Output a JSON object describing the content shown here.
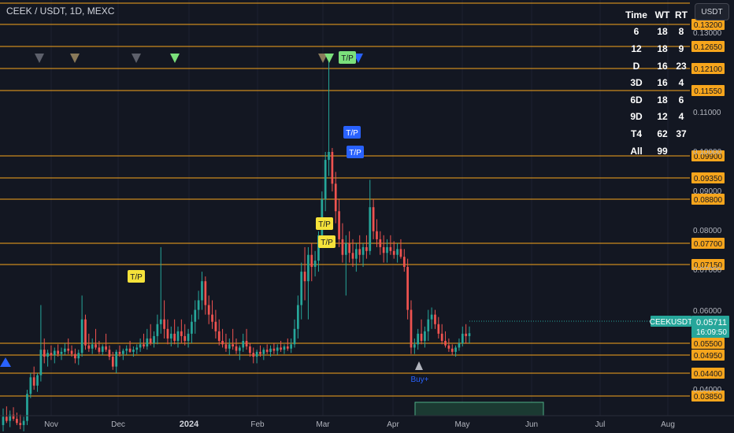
{
  "header": {
    "symbol": "CEEK / USDT, 1D, MEXC",
    "currency_button": "USDT"
  },
  "stats_table": {
    "columns": [
      "Time",
      "WT",
      "RT"
    ],
    "rows": [
      [
        "6",
        "18",
        "8"
      ],
      [
        "12",
        "18",
        "9"
      ],
      [
        "D",
        "16",
        "23"
      ],
      [
        "3D",
        "16",
        "4"
      ],
      [
        "6D",
        "18",
        "6"
      ],
      [
        "9D",
        "12",
        "4"
      ],
      [
        "T4",
        "62",
        "37"
      ],
      [
        "All",
        "99",
        ""
      ]
    ]
  },
  "chart_data": {
    "type": "candlestick",
    "symbol": "CEEKUSDT",
    "interval": "1D",
    "exchange": "MEXC",
    "x_axis_labels": [
      "Nov",
      "Dec",
      "2024",
      "Feb",
      "Mar",
      "Apr",
      "May",
      "Jun",
      "Jul",
      "Aug"
    ],
    "y_axis_ticks": [
      "0.13000",
      "0.11000",
      "0.10000",
      "0.09000",
      "0.08000",
      "0.07000",
      "0.06000",
      "0.04000"
    ],
    "levels": [
      "0.13200",
      "0.12650",
      "0.12100",
      "0.11550",
      "0.09900",
      "0.09350",
      "0.08800",
      "0.07700",
      "0.07150",
      "0.05500",
      "0.04950",
      "0.04400",
      "0.03850"
    ],
    "last_price": {
      "label": "CEEKUSDT",
      "value": "0.05711",
      "countdown": "16:09:50"
    },
    "markers": [
      {
        "label": "T/P",
        "color": "#7be07b"
      },
      {
        "label": "T/P",
        "color": "#2962ff"
      },
      {
        "label": "T/P",
        "color": "#2962ff"
      },
      {
        "label": "T/P",
        "color": "#f5e23a"
      },
      {
        "label": "T/P",
        "color": "#f5e23a"
      },
      {
        "label": "T/P",
        "color": "#f5e23a"
      },
      {
        "label": "Buy+",
        "color": "#2962ff"
      }
    ],
    "colors": {
      "up": "#26a69a",
      "down": "#ef5350",
      "level_line": "#f7a51c",
      "background": "#131722"
    },
    "candles": [
      {
        "o": 0.0315,
        "h": 0.0355,
        "l": 0.03,
        "c": 0.0335
      },
      {
        "o": 0.0335,
        "h": 0.036,
        "l": 0.032,
        "c": 0.0325
      },
      {
        "o": 0.0325,
        "h": 0.035,
        "l": 0.031,
        "c": 0.034
      },
      {
        "o": 0.034,
        "h": 0.0358,
        "l": 0.0325,
        "c": 0.033
      },
      {
        "o": 0.033,
        "h": 0.0345,
        "l": 0.0315,
        "c": 0.032
      },
      {
        "o": 0.032,
        "h": 0.034,
        "l": 0.0305,
        "c": 0.0315
      },
      {
        "o": 0.0315,
        "h": 0.0335,
        "l": 0.03,
        "c": 0.0325
      },
      {
        "o": 0.0325,
        "h": 0.04,
        "l": 0.0315,
        "c": 0.039
      },
      {
        "o": 0.039,
        "h": 0.044,
        "l": 0.038,
        "c": 0.043
      },
      {
        "o": 0.043,
        "h": 0.046,
        "l": 0.04,
        "c": 0.041
      },
      {
        "o": 0.041,
        "h": 0.044,
        "l": 0.0395,
        "c": 0.0435
      },
      {
        "o": 0.0435,
        "h": 0.063,
        "l": 0.042,
        "c": 0.052
      },
      {
        "o": 0.052,
        "h": 0.056,
        "l": 0.047,
        "c": 0.049
      },
      {
        "o": 0.049,
        "h": 0.052,
        "l": 0.046,
        "c": 0.0505
      },
      {
        "o": 0.0505,
        "h": 0.054,
        "l": 0.048,
        "c": 0.0495
      },
      {
        "o": 0.0495,
        "h": 0.053,
        "l": 0.047,
        "c": 0.0515
      },
      {
        "o": 0.0515,
        "h": 0.0545,
        "l": 0.049,
        "c": 0.05
      },
      {
        "o": 0.05,
        "h": 0.053,
        "l": 0.048,
        "c": 0.051
      },
      {
        "o": 0.051,
        "h": 0.055,
        "l": 0.0495,
        "c": 0.0525
      },
      {
        "o": 0.0525,
        "h": 0.056,
        "l": 0.05,
        "c": 0.0515
      },
      {
        "o": 0.0515,
        "h": 0.054,
        "l": 0.049,
        "c": 0.05
      },
      {
        "o": 0.05,
        "h": 0.0525,
        "l": 0.047,
        "c": 0.0485
      },
      {
        "o": 0.0485,
        "h": 0.052,
        "l": 0.0465,
        "c": 0.0505
      },
      {
        "o": 0.0505,
        "h": 0.065,
        "l": 0.049,
        "c": 0.06
      },
      {
        "o": 0.06,
        "h": 0.061,
        "l": 0.052,
        "c": 0.054
      },
      {
        "o": 0.054,
        "h": 0.057,
        "l": 0.051,
        "c": 0.0525
      },
      {
        "o": 0.0525,
        "h": 0.056,
        "l": 0.05,
        "c": 0.0545
      },
      {
        "o": 0.0545,
        "h": 0.058,
        "l": 0.052,
        "c": 0.053
      },
      {
        "o": 0.053,
        "h": 0.0555,
        "l": 0.05,
        "c": 0.051
      },
      {
        "o": 0.051,
        "h": 0.0545,
        "l": 0.0495,
        "c": 0.0535
      },
      {
        "o": 0.0535,
        "h": 0.057,
        "l": 0.051,
        "c": 0.052
      },
      {
        "o": 0.052,
        "h": 0.054,
        "l": 0.048,
        "c": 0.049
      },
      {
        "o": 0.049,
        "h": 0.051,
        "l": 0.045,
        "c": 0.046
      },
      {
        "o": 0.046,
        "h": 0.052,
        "l": 0.044,
        "c": 0.051
      },
      {
        "o": 0.051,
        "h": 0.054,
        "l": 0.049,
        "c": 0.05
      },
      {
        "o": 0.05,
        "h": 0.0525,
        "l": 0.048,
        "c": 0.0515
      },
      {
        "o": 0.0515,
        "h": 0.054,
        "l": 0.0495,
        "c": 0.0525
      },
      {
        "o": 0.0525,
        "h": 0.0555,
        "l": 0.0505,
        "c": 0.051
      },
      {
        "o": 0.051,
        "h": 0.0535,
        "l": 0.049,
        "c": 0.052
      },
      {
        "o": 0.052,
        "h": 0.0545,
        "l": 0.05,
        "c": 0.053
      },
      {
        "o": 0.053,
        "h": 0.056,
        "l": 0.051,
        "c": 0.0545
      },
      {
        "o": 0.0545,
        "h": 0.057,
        "l": 0.0525,
        "c": 0.0535
      },
      {
        "o": 0.0535,
        "h": 0.058,
        "l": 0.052,
        "c": 0.056
      },
      {
        "o": 0.056,
        "h": 0.059,
        "l": 0.054,
        "c": 0.055
      },
      {
        "o": 0.055,
        "h": 0.0575,
        "l": 0.053,
        "c": 0.0565
      },
      {
        "o": 0.0565,
        "h": 0.061,
        "l": 0.0545,
        "c": 0.059
      },
      {
        "o": 0.059,
        "h": 0.076,
        "l": 0.057,
        "c": 0.06
      },
      {
        "o": 0.06,
        "h": 0.064,
        "l": 0.056,
        "c": 0.058
      },
      {
        "o": 0.058,
        "h": 0.06,
        "l": 0.0545,
        "c": 0.056
      },
      {
        "o": 0.056,
        "h": 0.0585,
        "l": 0.0535,
        "c": 0.057
      },
      {
        "o": 0.057,
        "h": 0.06,
        "l": 0.0545,
        "c": 0.0555
      },
      {
        "o": 0.0555,
        "h": 0.0585,
        "l": 0.053,
        "c": 0.0575
      },
      {
        "o": 0.0575,
        "h": 0.06,
        "l": 0.055,
        "c": 0.0565
      },
      {
        "o": 0.0565,
        "h": 0.059,
        "l": 0.054,
        "c": 0.0555
      },
      {
        "o": 0.0555,
        "h": 0.058,
        "l": 0.053,
        "c": 0.057
      },
      {
        "o": 0.057,
        "h": 0.061,
        "l": 0.055,
        "c": 0.0595
      },
      {
        "o": 0.0595,
        "h": 0.064,
        "l": 0.057,
        "c": 0.062
      },
      {
        "o": 0.062,
        "h": 0.066,
        "l": 0.06,
        "c": 0.064
      },
      {
        "o": 0.064,
        "h": 0.07,
        "l": 0.062,
        "c": 0.068
      },
      {
        "o": 0.068,
        "h": 0.069,
        "l": 0.061,
        "c": 0.063
      },
      {
        "o": 0.063,
        "h": 0.065,
        "l": 0.059,
        "c": 0.061
      },
      {
        "o": 0.061,
        "h": 0.064,
        "l": 0.058,
        "c": 0.0595
      },
      {
        "o": 0.0595,
        "h": 0.062,
        "l": 0.056,
        "c": 0.0575
      },
      {
        "o": 0.0575,
        "h": 0.06,
        "l": 0.054,
        "c": 0.0555
      },
      {
        "o": 0.0555,
        "h": 0.058,
        "l": 0.053,
        "c": 0.0545
      },
      {
        "o": 0.0545,
        "h": 0.057,
        "l": 0.051,
        "c": 0.0525
      },
      {
        "o": 0.0525,
        "h": 0.056,
        "l": 0.0495,
        "c": 0.0545
      },
      {
        "o": 0.0545,
        "h": 0.058,
        "l": 0.052,
        "c": 0.0535
      },
      {
        "o": 0.0535,
        "h": 0.056,
        "l": 0.05,
        "c": 0.0515
      },
      {
        "o": 0.0515,
        "h": 0.054,
        "l": 0.048,
        "c": 0.053
      },
      {
        "o": 0.053,
        "h": 0.057,
        "l": 0.051,
        "c": 0.0555
      },
      {
        "o": 0.0555,
        "h": 0.058,
        "l": 0.052,
        "c": 0.0535
      },
      {
        "o": 0.0535,
        "h": 0.055,
        "l": 0.049,
        "c": 0.0505
      },
      {
        "o": 0.0505,
        "h": 0.053,
        "l": 0.047,
        "c": 0.049
      },
      {
        "o": 0.049,
        "h": 0.052,
        "l": 0.047,
        "c": 0.051
      },
      {
        "o": 0.051,
        "h": 0.054,
        "l": 0.049,
        "c": 0.05
      },
      {
        "o": 0.05,
        "h": 0.053,
        "l": 0.048,
        "c": 0.052
      },
      {
        "o": 0.052,
        "h": 0.0545,
        "l": 0.05,
        "c": 0.051
      },
      {
        "o": 0.051,
        "h": 0.054,
        "l": 0.049,
        "c": 0.0525
      },
      {
        "o": 0.0525,
        "h": 0.055,
        "l": 0.05,
        "c": 0.0515
      },
      {
        "o": 0.0515,
        "h": 0.0545,
        "l": 0.0495,
        "c": 0.053
      },
      {
        "o": 0.053,
        "h": 0.0555,
        "l": 0.051,
        "c": 0.052
      },
      {
        "o": 0.052,
        "h": 0.0545,
        "l": 0.05,
        "c": 0.0535
      },
      {
        "o": 0.0535,
        "h": 0.056,
        "l": 0.0515,
        "c": 0.0525
      },
      {
        "o": 0.0525,
        "h": 0.056,
        "l": 0.0505,
        "c": 0.0545
      },
      {
        "o": 0.0545,
        "h": 0.06,
        "l": 0.053,
        "c": 0.058
      },
      {
        "o": 0.058,
        "h": 0.065,
        "l": 0.056,
        "c": 0.063
      },
      {
        "o": 0.063,
        "h": 0.072,
        "l": 0.06,
        "c": 0.07
      },
      {
        "o": 0.07,
        "h": 0.076,
        "l": 0.064,
        "c": 0.068
      },
      {
        "o": 0.068,
        "h": 0.076,
        "l": 0.06,
        "c": 0.074
      },
      {
        "o": 0.074,
        "h": 0.077,
        "l": 0.068,
        "c": 0.071
      },
      {
        "o": 0.071,
        "h": 0.075,
        "l": 0.069,
        "c": 0.0725
      },
      {
        "o": 0.0725,
        "h": 0.08,
        "l": 0.07,
        "c": 0.079
      },
      {
        "o": 0.079,
        "h": 0.09,
        "l": 0.076,
        "c": 0.088
      },
      {
        "o": 0.088,
        "h": 0.1,
        "l": 0.085,
        "c": 0.098
      },
      {
        "o": 0.098,
        "h": 0.123,
        "l": 0.094,
        "c": 0.1
      },
      {
        "o": 0.1,
        "h": 0.101,
        "l": 0.09,
        "c": 0.092
      },
      {
        "o": 0.092,
        "h": 0.095,
        "l": 0.082,
        "c": 0.085
      },
      {
        "o": 0.085,
        "h": 0.088,
        "l": 0.076,
        "c": 0.078
      },
      {
        "o": 0.078,
        "h": 0.082,
        "l": 0.072,
        "c": 0.074
      },
      {
        "o": 0.074,
        "h": 0.079,
        "l": 0.065,
        "c": 0.077
      },
      {
        "o": 0.077,
        "h": 0.08,
        "l": 0.072,
        "c": 0.0745
      },
      {
        "o": 0.0745,
        "h": 0.078,
        "l": 0.071,
        "c": 0.073
      },
      {
        "o": 0.073,
        "h": 0.077,
        "l": 0.07,
        "c": 0.0755
      },
      {
        "o": 0.0755,
        "h": 0.079,
        "l": 0.072,
        "c": 0.074
      },
      {
        "o": 0.074,
        "h": 0.077,
        "l": 0.071,
        "c": 0.076
      },
      {
        "o": 0.076,
        "h": 0.079,
        "l": 0.073,
        "c": 0.075
      },
      {
        "o": 0.075,
        "h": 0.093,
        "l": 0.074,
        "c": 0.086
      },
      {
        "o": 0.086,
        "h": 0.088,
        "l": 0.078,
        "c": 0.08
      },
      {
        "o": 0.08,
        "h": 0.083,
        "l": 0.076,
        "c": 0.078
      },
      {
        "o": 0.078,
        "h": 0.08,
        "l": 0.074,
        "c": 0.076
      },
      {
        "o": 0.076,
        "h": 0.079,
        "l": 0.072,
        "c": 0.0745
      },
      {
        "o": 0.0745,
        "h": 0.078,
        "l": 0.072,
        "c": 0.076
      },
      {
        "o": 0.076,
        "h": 0.079,
        "l": 0.074,
        "c": 0.075
      },
      {
        "o": 0.075,
        "h": 0.0775,
        "l": 0.073,
        "c": 0.074
      },
      {
        "o": 0.074,
        "h": 0.077,
        "l": 0.072,
        "c": 0.0755
      },
      {
        "o": 0.0755,
        "h": 0.078,
        "l": 0.073,
        "c": 0.0735
      },
      {
        "o": 0.0735,
        "h": 0.0755,
        "l": 0.07,
        "c": 0.071
      },
      {
        "o": 0.071,
        "h": 0.073,
        "l": 0.06,
        "c": 0.062
      },
      {
        "o": 0.062,
        "h": 0.064,
        "l": 0.05,
        "c": 0.053
      },
      {
        "o": 0.053,
        "h": 0.056,
        "l": 0.05,
        "c": 0.0545
      },
      {
        "o": 0.0545,
        "h": 0.058,
        "l": 0.052,
        "c": 0.057
      },
      {
        "o": 0.057,
        "h": 0.06,
        "l": 0.0545,
        "c": 0.0555
      },
      {
        "o": 0.0555,
        "h": 0.0585,
        "l": 0.053,
        "c": 0.0575
      },
      {
        "o": 0.0575,
        "h": 0.062,
        "l": 0.0555,
        "c": 0.06
      },
      {
        "o": 0.06,
        "h": 0.0625,
        "l": 0.058,
        "c": 0.061
      },
      {
        "o": 0.061,
        "h": 0.062,
        "l": 0.058,
        "c": 0.059
      },
      {
        "o": 0.059,
        "h": 0.0605,
        "l": 0.056,
        "c": 0.057
      },
      {
        "o": 0.057,
        "h": 0.059,
        "l": 0.0545,
        "c": 0.0555
      },
      {
        "o": 0.0555,
        "h": 0.0575,
        "l": 0.053,
        "c": 0.054
      },
      {
        "o": 0.054,
        "h": 0.056,
        "l": 0.051,
        "c": 0.0525
      },
      {
        "o": 0.0525,
        "h": 0.0545,
        "l": 0.0495,
        "c": 0.051
      },
      {
        "o": 0.051,
        "h": 0.054,
        "l": 0.049,
        "c": 0.053
      },
      {
        "o": 0.053,
        "h": 0.056,
        "l": 0.0515,
        "c": 0.055
      },
      {
        "o": 0.055,
        "h": 0.0585,
        "l": 0.0535,
        "c": 0.057
      },
      {
        "o": 0.057,
        "h": 0.059,
        "l": 0.055,
        "c": 0.0565
      },
      {
        "o": 0.0565,
        "h": 0.0585,
        "l": 0.055,
        "c": 0.0571
      }
    ]
  }
}
